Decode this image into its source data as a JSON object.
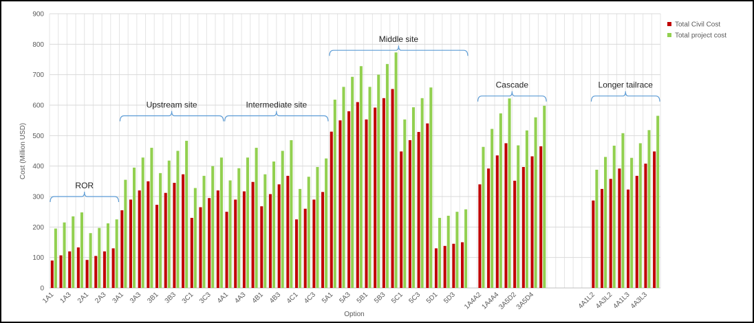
{
  "chart_data": {
    "type": "bar",
    "y_label": "Cost (Million USD)",
    "x_label": "Option",
    "categories": [
      "1A1",
      null,
      "1A3",
      null,
      "2A1",
      null,
      "2A3",
      null,
      "3A1",
      null,
      "3A3",
      null,
      "3B1",
      null,
      "3B3",
      null,
      "3C1",
      null,
      "3C3",
      null,
      "4A1",
      null,
      "4A3",
      null,
      "4B1",
      null,
      "4B3",
      null,
      "4C1",
      null,
      "4C3",
      null,
      "5A1",
      null,
      "5A3",
      null,
      "5B1",
      null,
      "5B3",
      null,
      "5C1",
      null,
      "5C3",
      null,
      "5D1",
      null,
      "5D3",
      null,
      null,
      "1A4A2",
      null,
      "1A4A4",
      null,
      "3A5D2",
      null,
      "3A5D4",
      null,
      null,
      null,
      null,
      null,
      null,
      "4A1L2",
      null,
      "4A3L2",
      null,
      "4A1L3",
      null,
      "4A3L3",
      null
    ],
    "series": [
      {
        "name": "Total Civil Cost",
        "color": "#c00000",
        "values": [
          90,
          107,
          120,
          133,
          92,
          105,
          120,
          130,
          255,
          290,
          320,
          350,
          273,
          312,
          345,
          373,
          230,
          265,
          295,
          320,
          250,
          290,
          317,
          348,
          268,
          308,
          340,
          368,
          225,
          260,
          290,
          315,
          513,
          550,
          580,
          610,
          553,
          592,
          623,
          653,
          448,
          485,
          512,
          540,
          130,
          138,
          145,
          150,
          null,
          340,
          392,
          435,
          475,
          352,
          397,
          432,
          465,
          null,
          null,
          null,
          null,
          null,
          287,
          325,
          358,
          392,
          323,
          368,
          408,
          448
        ]
      },
      {
        "name": "Total project cost",
        "color": "#92d050",
        "values": [
          195,
          215,
          235,
          248,
          180,
          197,
          212,
          225,
          355,
          395,
          428,
          460,
          377,
          418,
          450,
          483,
          328,
          368,
          400,
          428,
          353,
          393,
          428,
          460,
          373,
          415,
          450,
          485,
          325,
          365,
          397,
          425,
          618,
          660,
          693,
          728,
          660,
          700,
          735,
          773,
          553,
          593,
          623,
          658,
          230,
          237,
          250,
          258,
          null,
          463,
          522,
          573,
          622,
          468,
          517,
          560,
          598,
          null,
          null,
          null,
          null,
          null,
          388,
          430,
          467,
          508,
          427,
          475,
          518,
          565
        ]
      }
    ],
    "annotations": [
      "ROR",
      "Upstream site",
      "Intermediate site",
      "Middle site",
      "Cascade",
      "Longer tailrace"
    ],
    "ylim": [
      0,
      900
    ],
    "yticks": [
      0,
      100,
      200,
      300,
      400,
      500,
      600,
      700,
      800,
      900
    ],
    "grid": true,
    "legend": "right"
  }
}
